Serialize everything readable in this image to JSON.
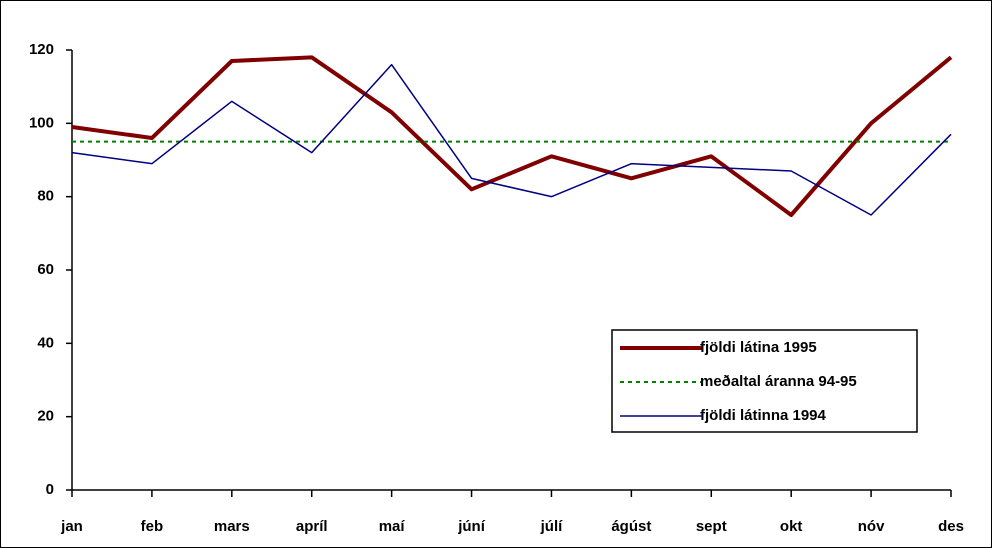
{
  "chart_data": {
    "type": "line",
    "categories": [
      "jan",
      "feb",
      "mars",
      "apríl",
      "maí",
      "júní",
      "júlí",
      "ágúst",
      "sept",
      "okt",
      "nóv",
      "des"
    ],
    "series": [
      {
        "name": "fjöldi látina 1995",
        "color": "#800000",
        "width": 4,
        "dash": "none",
        "values": [
          99,
          96,
          117,
          118,
          103,
          82,
          91,
          85,
          91,
          75,
          100,
          118
        ]
      },
      {
        "name": "meðaltal áranna 94-95",
        "color": "#008000",
        "width": 2,
        "dash": "4 4",
        "values": [
          95,
          95,
          95,
          95,
          95,
          95,
          95,
          95,
          95,
          95,
          95,
          95
        ]
      },
      {
        "name": "fjöldi látinna 1994",
        "color": "#000080",
        "width": 1.5,
        "dash": "none",
        "values": [
          92,
          89,
          106,
          92,
          116,
          85,
          80,
          89,
          88,
          87,
          75,
          97
        ]
      }
    ],
    "ylim": [
      0,
      120
    ],
    "yticks": [
      0,
      20,
      40,
      60,
      80,
      100,
      120
    ],
    "grid": false,
    "legend": "lower-right"
  }
}
